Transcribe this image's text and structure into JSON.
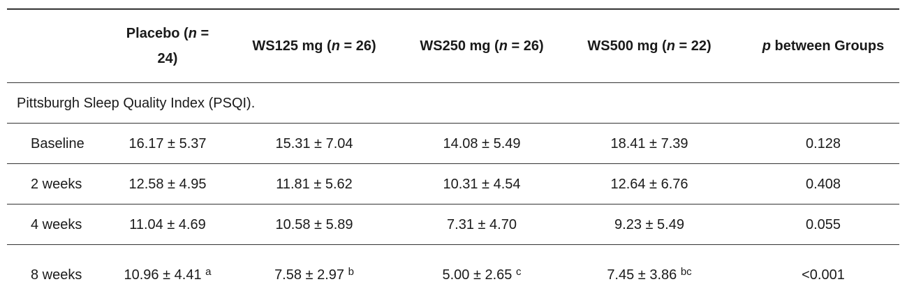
{
  "table": {
    "header": [
      [],
      [
        {
          "text": "Placebo ("
        },
        {
          "text": "n",
          "italic": true
        },
        {
          "text": " = 24)"
        }
      ],
      [
        {
          "text": "WS125 mg ("
        },
        {
          "text": "n",
          "italic": true
        },
        {
          "text": " = 26)"
        }
      ],
      [
        {
          "text": "WS250 mg ("
        },
        {
          "text": "n",
          "italic": true
        },
        {
          "text": " = 26)"
        }
      ],
      [
        {
          "text": "WS500 mg ("
        },
        {
          "text": "n",
          "italic": true
        },
        {
          "text": " = 22)"
        }
      ],
      [
        {
          "text": "p",
          "italic": true
        },
        {
          "text": " between Groups"
        }
      ]
    ],
    "section": "Pittsburgh Sleep Quality Index (PSQI).",
    "rows": [
      {
        "label": "Baseline",
        "cells": [
          {
            "value": "16.17 ± 5.37"
          },
          {
            "value": "15.31 ± 7.04"
          },
          {
            "value": "14.08 ± 5.49"
          },
          {
            "value": "18.41 ± 7.39"
          },
          {
            "value": "0.128"
          }
        ]
      },
      {
        "label": "2 weeks",
        "cells": [
          {
            "value": "12.58 ± 4.95"
          },
          {
            "value": "11.81 ± 5.62"
          },
          {
            "value": "10.31 ± 4.54"
          },
          {
            "value": "12.64 ± 6.76"
          },
          {
            "value": "0.408"
          }
        ]
      },
      {
        "label": "4 weeks",
        "cells": [
          {
            "value": "11.04 ± 4.69"
          },
          {
            "value": "10.58 ± 5.89"
          },
          {
            "value": "7.31 ± 4.70"
          },
          {
            "value": "9.23 ± 5.49"
          },
          {
            "value": "0.055"
          }
        ]
      },
      {
        "label": "8 weeks",
        "cells": [
          {
            "value": "10.96 ± 4.41",
            "sup": "a"
          },
          {
            "value": "7.58 ± 2.97",
            "sup": "b"
          },
          {
            "value": "5.00 ± 2.65",
            "sup": "c"
          },
          {
            "value": "7.45 ± 3.86",
            "sup": "bc"
          },
          {
            "value": "<0.001"
          }
        ]
      }
    ]
  }
}
